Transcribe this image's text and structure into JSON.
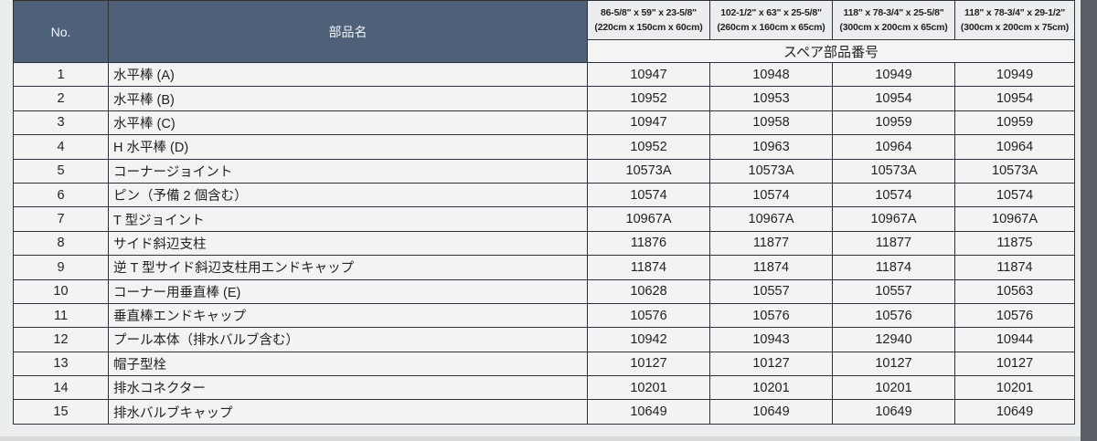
{
  "header": {
    "no": "No.",
    "part_name": "部品名",
    "spare_parts_number": "スペア部品番号",
    "sizes": [
      {
        "inch": "86-5/8\" x 59\" x 23-5/8\"",
        "cm": "(220cm x 150cm x 60cm)"
      },
      {
        "inch": "102-1/2\" x 63\" x 25-5/8\"",
        "cm": "(260cm x 160cm x 65cm)"
      },
      {
        "inch": "118\" x 78-3/4\" x 25-5/8\"",
        "cm": "(300cm x 200cm x 65cm)"
      },
      {
        "inch": "118\" x 78-3/4\" x 29-1/2\"",
        "cm": "(300cm x 200cm x 75cm)"
      }
    ]
  },
  "rows": [
    {
      "no": "1",
      "name": "水平棒 (A)",
      "parts": [
        "10947",
        "10948",
        "10949",
        "10949"
      ]
    },
    {
      "no": "2",
      "name": "水平棒 (B)",
      "parts": [
        "10952",
        "10953",
        "10954",
        "10954"
      ]
    },
    {
      "no": "3",
      "name": "水平棒 (C)",
      "parts": [
        "10947",
        "10958",
        "10959",
        "10959"
      ]
    },
    {
      "no": "4",
      "name": "H 水平棒 (D)",
      "parts": [
        "10952",
        "10963",
        "10964",
        "10964"
      ]
    },
    {
      "no": "5",
      "name": "コーナージョイント",
      "parts": [
        "10573A",
        "10573A",
        "10573A",
        "10573A"
      ]
    },
    {
      "no": "6",
      "name": "ピン（予備 2 個含む）",
      "parts": [
        "10574",
        "10574",
        "10574",
        "10574"
      ]
    },
    {
      "no": "7",
      "name": "T 型ジョイント",
      "parts": [
        "10967A",
        "10967A",
        "10967A",
        "10967A"
      ]
    },
    {
      "no": "8",
      "name": "サイド斜辺支柱",
      "parts": [
        "11876",
        "11877",
        "11877",
        "11875"
      ]
    },
    {
      "no": "9",
      "name": "逆 T 型サイド斜辺支柱用エンドキャップ",
      "parts": [
        "11874",
        "11874",
        "11874",
        "11874"
      ]
    },
    {
      "no": "10",
      "name": "コーナー用垂直棒 (E)",
      "parts": [
        "10628",
        "10557",
        "10557",
        "10563"
      ]
    },
    {
      "no": "11",
      "name": "垂直棒エンドキャップ",
      "parts": [
        "10576",
        "10576",
        "10576",
        "10576"
      ]
    },
    {
      "no": "12",
      "name": "プール本体（排水バルブ含む）",
      "parts": [
        "10942",
        "10943",
        "12940",
        "10944"
      ]
    },
    {
      "no": "13",
      "name": "帽子型栓",
      "parts": [
        "10127",
        "10127",
        "10127",
        "10127"
      ]
    },
    {
      "no": "14",
      "name": "排水コネクター",
      "parts": [
        "10201",
        "10201",
        "10201",
        "10201"
      ]
    },
    {
      "no": "15",
      "name": "排水バルブキャップ",
      "parts": [
        "10649",
        "10649",
        "10649",
        "10649"
      ]
    }
  ],
  "colors": {
    "header_bg": "#4f6079",
    "border": "#2e3138"
  }
}
